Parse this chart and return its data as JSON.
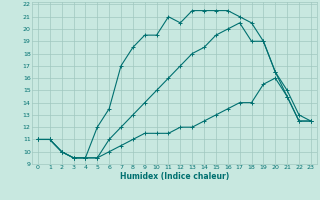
{
  "xlabel": "Humidex (Indice chaleur)",
  "bg_color": "#c8e8e0",
  "grid_color": "#a0c8c0",
  "line_color": "#007070",
  "xlim": [
    -0.5,
    23.5
  ],
  "ylim": [
    9,
    22.2
  ],
  "xticks": [
    0,
    1,
    2,
    3,
    4,
    5,
    6,
    7,
    8,
    9,
    10,
    11,
    12,
    13,
    14,
    15,
    16,
    17,
    18,
    19,
    20,
    21,
    22,
    23
  ],
  "yticks": [
    9,
    10,
    11,
    12,
    13,
    14,
    15,
    16,
    17,
    18,
    19,
    20,
    21,
    22
  ],
  "curve1_x": [
    0,
    1,
    2,
    3,
    4,
    5,
    6,
    7,
    8,
    9,
    10,
    11,
    12,
    13,
    14,
    15,
    16,
    17,
    18,
    19,
    20,
    21,
    22,
    23
  ],
  "curve1_y": [
    11,
    11,
    10,
    9.5,
    9.5,
    12,
    13.5,
    17,
    18.5,
    19.5,
    19.5,
    21,
    20.5,
    21.5,
    21.5,
    21.5,
    21.5,
    21,
    20.5,
    19,
    16.5,
    14.5,
    12.5,
    12.5
  ],
  "curve2_x": [
    0,
    1,
    2,
    3,
    4,
    5,
    6,
    7,
    8,
    9,
    10,
    11,
    12,
    13,
    14,
    15,
    16,
    17,
    18,
    19,
    20,
    21,
    22,
    23
  ],
  "curve2_y": [
    11,
    11,
    10,
    9.5,
    9.5,
    9.5,
    11,
    12,
    13,
    14,
    15,
    16,
    17,
    18,
    18.5,
    19.5,
    20,
    20.5,
    19,
    19,
    16.5,
    15,
    13,
    12.5
  ],
  "curve3_x": [
    0,
    1,
    2,
    3,
    4,
    5,
    6,
    7,
    8,
    9,
    10,
    11,
    12,
    13,
    14,
    15,
    16,
    17,
    18,
    19,
    20,
    21,
    22,
    23
  ],
  "curve3_y": [
    11,
    11,
    10,
    9.5,
    9.5,
    9.5,
    10,
    10.5,
    11,
    11.5,
    11.5,
    11.5,
    12,
    12,
    12.5,
    13,
    13.5,
    14,
    14,
    15.5,
    16,
    14.5,
    12.5,
    12.5
  ]
}
